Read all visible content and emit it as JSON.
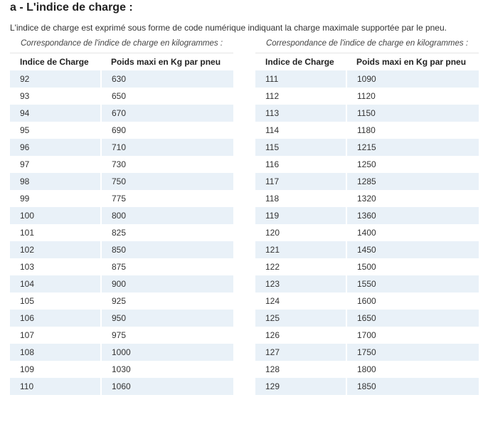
{
  "heading": "a - L'indice de charge :",
  "intro": "L'indice de charge est exprimé sous forme de code numérique indiquant la charge maximale supportée par le pneu.",
  "tables": [
    {
      "caption": "Correspondance de l'indice de charge en kilogrammes :",
      "headers": [
        "Indice de Charge",
        "Poids maxi en Kg par pneu"
      ],
      "rows": [
        [
          "92",
          "630"
        ],
        [
          "93",
          "650"
        ],
        [
          "94",
          "670"
        ],
        [
          "95",
          "690"
        ],
        [
          "96",
          "710"
        ],
        [
          "97",
          "730"
        ],
        [
          "98",
          "750"
        ],
        [
          "99",
          "775"
        ],
        [
          "100",
          "800"
        ],
        [
          "101",
          "825"
        ],
        [
          "102",
          "850"
        ],
        [
          "103",
          "875"
        ],
        [
          "104",
          "900"
        ],
        [
          "105",
          "925"
        ],
        [
          "106",
          "950"
        ],
        [
          "107",
          "975"
        ],
        [
          "108",
          "1000"
        ],
        [
          "109",
          "1030"
        ],
        [
          "110",
          "1060"
        ]
      ]
    },
    {
      "caption": "Correspondance de l'indice de charge en kilogrammes :",
      "headers": [
        "Indice de Charge",
        "Poids maxi en Kg par pneu"
      ],
      "rows": [
        [
          "111",
          "1090"
        ],
        [
          "112",
          "1120"
        ],
        [
          "113",
          "1150"
        ],
        [
          "114",
          "1180"
        ],
        [
          "115",
          "1215"
        ],
        [
          "116",
          "1250"
        ],
        [
          "117",
          "1285"
        ],
        [
          "118",
          "1320"
        ],
        [
          "119",
          "1360"
        ],
        [
          "120",
          "1400"
        ],
        [
          "121",
          "1450"
        ],
        [
          "122",
          "1500"
        ],
        [
          "123",
          "1550"
        ],
        [
          "124",
          "1600"
        ],
        [
          "125",
          "1650"
        ],
        [
          "126",
          "1700"
        ],
        [
          "127",
          "1750"
        ],
        [
          "128",
          "1800"
        ],
        [
          "129",
          "1850"
        ]
      ]
    }
  ],
  "colors": {
    "row_stripe": "#e9f1f8",
    "header_text": "#222222",
    "body_text": "#333333"
  }
}
